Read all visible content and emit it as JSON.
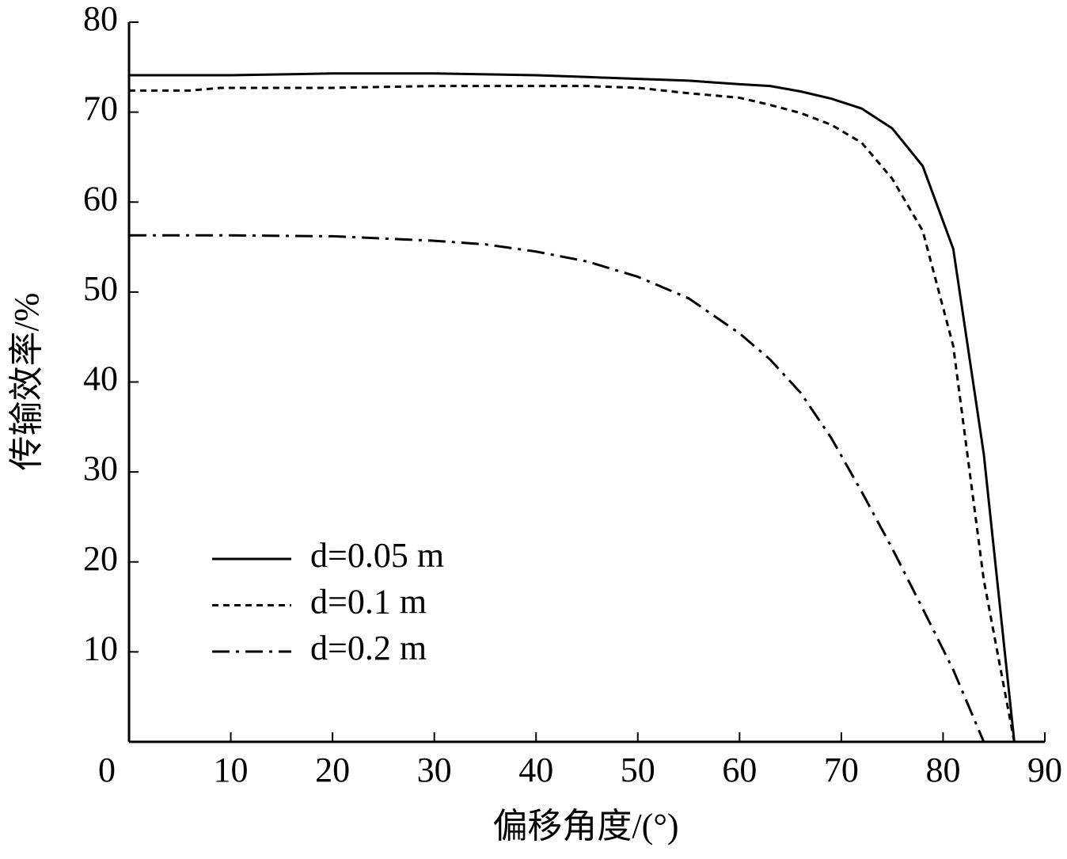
{
  "chart_data": {
    "type": "line",
    "xlabel": "偏移角度/(°)",
    "ylabel": "传输效率/%",
    "xlim": [
      0,
      90
    ],
    "xticks": [
      0,
      10,
      20,
      30,
      40,
      50,
      60,
      70,
      80,
      90
    ],
    "ylim": [
      0,
      80
    ],
    "yticks": [
      10,
      20,
      30,
      40,
      50,
      60,
      70,
      80
    ],
    "legend": "lower-left",
    "series": [
      {
        "name": "d=0.05 m",
        "color": "#000000",
        "dash": "solid",
        "x": [
          0,
          10,
          20,
          30,
          40,
          45,
          50,
          55,
          60,
          63,
          66,
          69,
          72,
          75,
          78,
          81,
          84,
          87
        ],
        "values": [
          74.1,
          74.1,
          74.3,
          74.3,
          74.1,
          73.9,
          73.7,
          73.5,
          73.1,
          72.9,
          72.3,
          71.5,
          70.4,
          68.2,
          64,
          54.8,
          32,
          0
        ]
      },
      {
        "name": "d=0.1 m",
        "color": "#000000",
        "dash": "dashed",
        "x": [
          0,
          6,
          9,
          20,
          30,
          40,
          45,
          50,
          55,
          60,
          63,
          66,
          69,
          72,
          75,
          78,
          81,
          84,
          87
        ],
        "values": [
          72.4,
          72.4,
          72.7,
          72.7,
          72.9,
          72.9,
          72.9,
          72.7,
          72.1,
          71.6,
          70.8,
          69.9,
          68.6,
          66.6,
          62.6,
          56.8,
          44,
          18,
          0
        ]
      },
      {
        "name": "d=0.2 m",
        "color": "#000000",
        "dash": "dashdot",
        "x": [
          0,
          10,
          20,
          30,
          35,
          40,
          45,
          50,
          55,
          60,
          63,
          66,
          69,
          72,
          75,
          78,
          81,
          84
        ],
        "values": [
          56.3,
          56.3,
          56.2,
          55.7,
          55.3,
          54.5,
          53.4,
          51.7,
          49.3,
          45.4,
          42.5,
          38.8,
          33.8,
          27.8,
          21.5,
          14.8,
          8,
          0
        ]
      }
    ]
  }
}
